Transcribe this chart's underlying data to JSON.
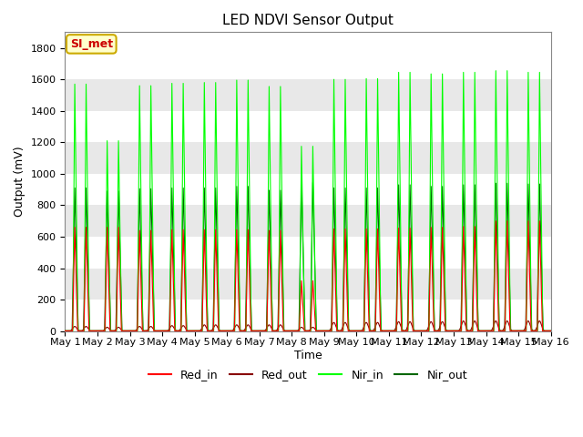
{
  "title": "LED NDVI Sensor Output",
  "xlabel": "Time",
  "ylabel": "Output (mV)",
  "ylim": [
    0,
    1900
  ],
  "yticks": [
    0,
    200,
    400,
    600,
    800,
    1000,
    1200,
    1400,
    1600,
    1800
  ],
  "x_tick_labels": [
    "May 1",
    "May 2",
    "May 3",
    "May 4",
    "May 5",
    "May 6",
    "May 7",
    "May 8",
    "May 9",
    "May 10",
    "May 11",
    "May 12",
    "May 13",
    "May 14",
    "May 15",
    "May 16"
  ],
  "annotation_text": "SI_met",
  "annotation_bg": "#ffffcc",
  "annotation_border": "#ccaa00",
  "colors": {
    "Red_in": "#ff0000",
    "Red_out": "#880000",
    "Nir_in": "#00ff00",
    "Nir_out": "#006600"
  },
  "background_color": "#ffffff",
  "grid_color": "#e0e0e0",
  "n_days": 15,
  "day_peak_red_in": [
    660,
    660,
    640,
    645,
    645,
    645,
    640,
    320,
    650,
    650,
    655,
    660,
    665,
    700,
    700
  ],
  "day_peak_red_out": [
    30,
    25,
    30,
    35,
    40,
    40,
    40,
    25,
    55,
    55,
    60,
    60,
    65,
    65,
    65
  ],
  "day_peak_nir_in": [
    1570,
    1210,
    1560,
    1575,
    1580,
    1595,
    1555,
    1175,
    1600,
    1605,
    1645,
    1635,
    1645,
    1655,
    1645
  ],
  "day_peak_nir_out": [
    910,
    890,
    905,
    910,
    910,
    920,
    895,
    945,
    910,
    910,
    930,
    920,
    930,
    940,
    935
  ],
  "title_fontsize": 11,
  "axis_label_fontsize": 9,
  "tick_fontsize": 8,
  "legend_fontsize": 9,
  "band_colors": [
    "#ffffff",
    "#e8e8e8"
  ]
}
